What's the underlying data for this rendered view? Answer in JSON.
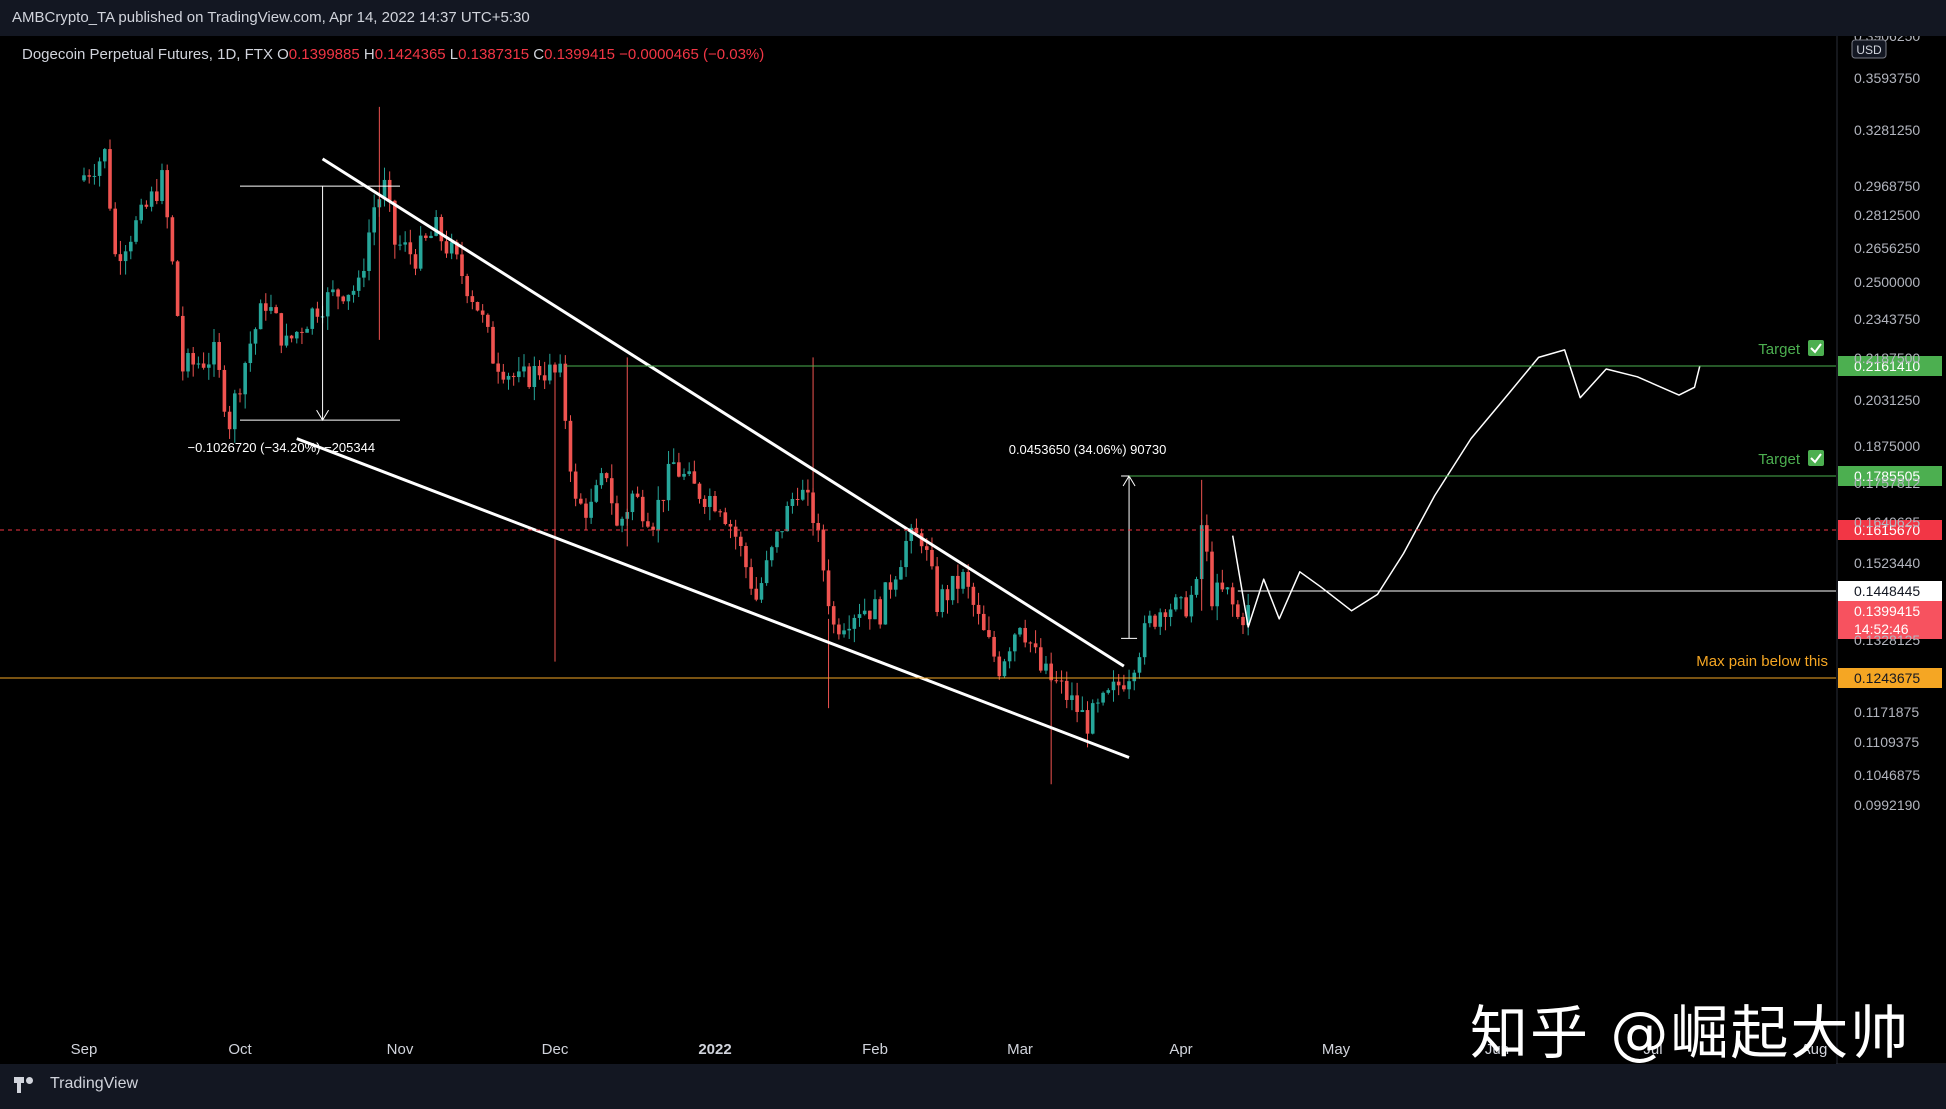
{
  "header": {
    "published_by": "AMBCrypto_TA published on TradingView.com, Apr 14, 2022 14:37 UTC+5:30"
  },
  "legend": {
    "symbol": "Dogecoin Perpetual Futures, 1D, FTX",
    "o_label": "O",
    "o_value": "0.1399885",
    "h_label": "H",
    "h_value": "0.1424365",
    "l_label": "L",
    "l_value": "0.1387315",
    "c_label": "C",
    "c_value": "0.1399415",
    "change": "−0.0000465 (−0.03%)"
  },
  "footer": {
    "brand": "TradingView"
  },
  "watermark": "知乎 @崛起大帅",
  "colors": {
    "up": "#26a69a",
    "down": "#ef5350",
    "green_level": "#4caf50",
    "orange_level": "#f5a623",
    "red_level": "#f23645",
    "white": "#ffffff"
  },
  "chart_data": {
    "type": "candlestick",
    "axis_currency": "USD",
    "y_ticks": [
      "0.3906250",
      "0.3593750",
      "0.3281250",
      "0.2968750",
      "0.2812500",
      "0.2656250",
      "0.2500000",
      "0.2343750",
      "0.2187500",
      "0.2031250",
      "0.1875000",
      "0.1757812",
      "0.1640625",
      "0.1523440",
      "0.1328125",
      "0.1171875",
      "0.1109375",
      "0.1046875",
      "0.0992190"
    ],
    "x_ticks": [
      {
        "label": "Sep",
        "x": "2021-09-01"
      },
      {
        "label": "Oct",
        "x": "2021-10-01"
      },
      {
        "label": "Nov",
        "x": "2021-11-01"
      },
      {
        "label": "Dec",
        "x": "2021-12-01"
      },
      {
        "label": "2022",
        "x": "2022-01-01"
      },
      {
        "label": "Feb",
        "x": "2022-02-01"
      },
      {
        "label": "Mar",
        "x": "2022-03-01"
      },
      {
        "label": "Apr",
        "x": "2022-04-01"
      },
      {
        "label": "May",
        "x": "2022-05-01"
      },
      {
        "label": "Jun",
        "x": "2022-06-01"
      },
      {
        "label": "Jul",
        "x": "2022-07-01"
      },
      {
        "label": "Aug",
        "x": "2022-08-01"
      }
    ],
    "levels": [
      {
        "price": 0.216141,
        "label": "0.2161410",
        "style": "green",
        "annotation": "Target ✓"
      },
      {
        "price": 0.1785505,
        "label": "0.1785505",
        "style": "green",
        "annotation": "Target ✓"
      },
      {
        "price": 0.161567,
        "label": "0.1615670",
        "style": "red-dashed"
      },
      {
        "price": 0.1448445,
        "label": "0.1448445",
        "style": "white"
      },
      {
        "price": 0.1399415,
        "label": "0.1399415",
        "style": "current",
        "countdown": "14:52:46"
      },
      {
        "price": 0.1243675,
        "label": "0.1243675",
        "style": "orange",
        "annotation": "Max pain below this"
      }
    ],
    "measures": [
      {
        "text": "−0.1026720 (−34.20%) −205344"
      },
      {
        "text": "0.0453650 (34.06%) 90730"
      }
    ],
    "trendlines": [
      {
        "name": "upper-wedge",
        "from": [
          "2021-10-17",
          0.312
        ],
        "to": [
          "2022-03-21",
          0.127
        ]
      },
      {
        "name": "lower-wedge",
        "from": [
          "2021-10-12",
          0.19
        ],
        "to": [
          "2022-03-22",
          0.108
        ]
      }
    ],
    "ohlc": []
  }
}
